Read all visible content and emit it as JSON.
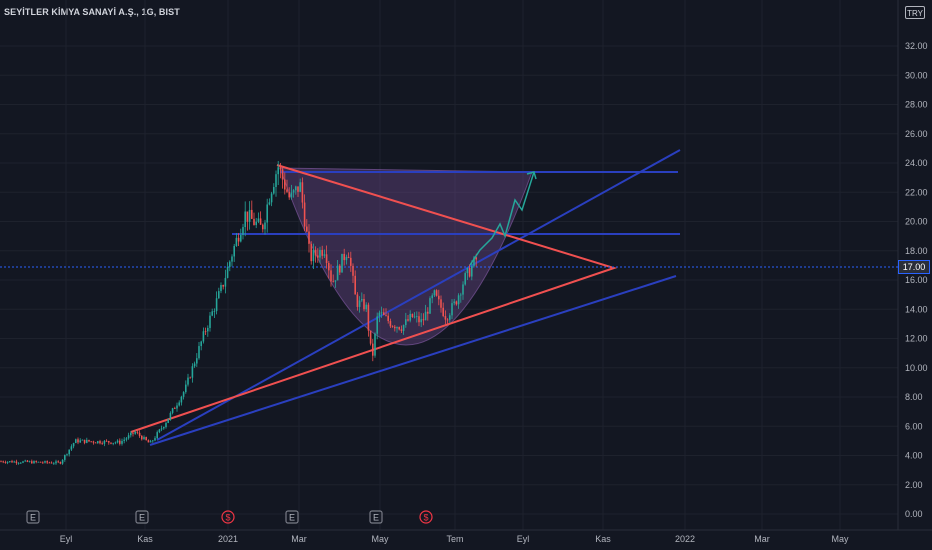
{
  "header": {
    "symbol_title": "SEYİTLER KİMYA SANAYİ A.Ş., 1G, BIST",
    "currency": "TRY"
  },
  "price_axis": {
    "ticks": [
      "0.00",
      "2.00",
      "4.00",
      "6.00",
      "8.00",
      "10.00",
      "12.00",
      "14.00",
      "16.00",
      "18.00",
      "20.00",
      "22.00",
      "24.00",
      "26.00",
      "28.00",
      "30.00",
      "32.00"
    ],
    "current_price": "17.00"
  },
  "time_axis": {
    "ticks": [
      "Eyl",
      "Kas",
      "2021",
      "Mar",
      "May",
      "Tem",
      "Eyl",
      "Kas",
      "2022",
      "Mar",
      "May"
    ]
  },
  "event_markers": [
    "E",
    "E",
    "$",
    "E",
    "E",
    "$"
  ],
  "colors": {
    "background": "#131722",
    "up_candle": "#26a69a",
    "down_candle": "#ef5350",
    "trend_blue": "#2a3fbf",
    "triangle_red": "#f05050",
    "cup_fill": "#7a4f9a",
    "projection_arrow": "#26a69a"
  }
}
